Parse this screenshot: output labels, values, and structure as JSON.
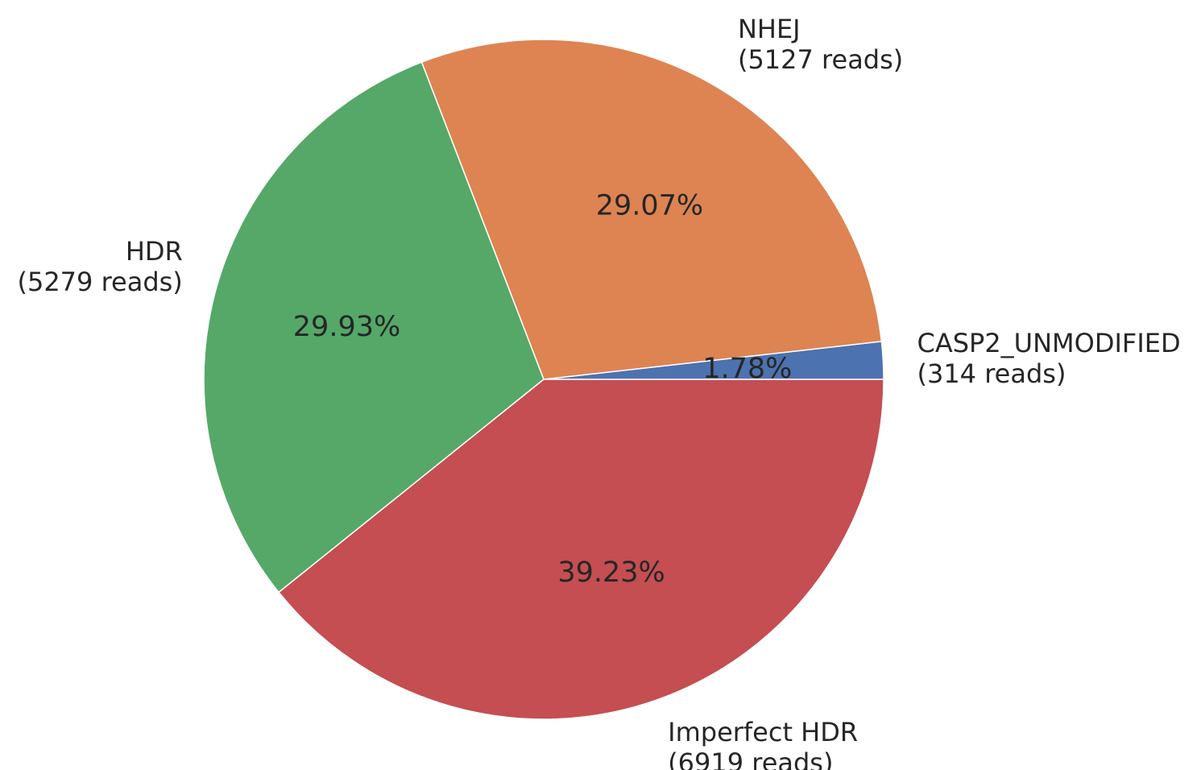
{
  "chart_data": {
    "type": "pie",
    "title": "",
    "start_angle_deg": 0,
    "direction": "counterclockwise",
    "slices": [
      {
        "category": "CASP2_UNMODIFIED",
        "reads_label": "(314 reads)",
        "value": 314,
        "percent_label": "1.78%",
        "color": "#4c72b0"
      },
      {
        "category": "NHEJ",
        "reads_label": "(5127 reads)",
        "value": 5127,
        "percent_label": "29.07%",
        "color": "#dd8452"
      },
      {
        "category": "HDR",
        "reads_label": "(5279 reads)",
        "value": 5279,
        "percent_label": "29.93%",
        "color": "#55a868"
      },
      {
        "category": "Imperfect HDR",
        "reads_label": "(6919 reads)",
        "value": 6919,
        "percent_label": "39.23%",
        "color": "#c44e52"
      }
    ]
  }
}
